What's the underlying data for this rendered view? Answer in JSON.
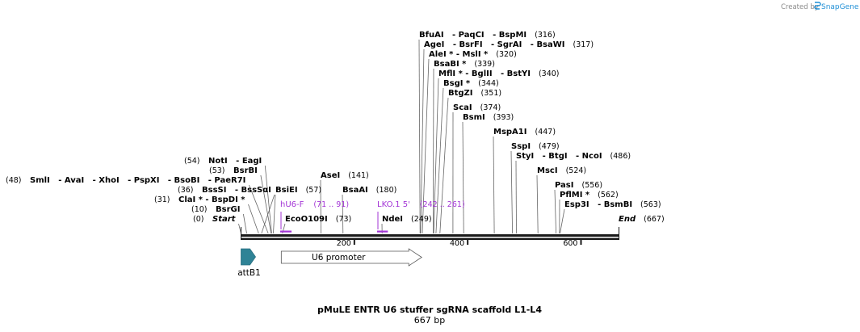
{
  "branding": {
    "created_by": "Created by",
    "app_name": "SnapGene"
  },
  "plasmid": {
    "name": "pMuLE ENTR U6 stuffer sgRNA scaffold L1-L4",
    "length_label": "667 bp",
    "length": 667
  },
  "ruler": {
    "start": 0,
    "end": 667,
    "ticks": [
      {
        "value": 200,
        "label": "200"
      },
      {
        "value": 400,
        "label": "400"
      },
      {
        "value": 600,
        "label": "600"
      }
    ]
  },
  "sites": [
    {
      "pos": 316,
      "name": "BfuAI   - PaqCI   - BspMI",
      "num": "(316)"
    },
    {
      "pos": 317,
      "name": "AgeI   - BsrFI   - SgrAI   - BsaWI",
      "num": "(317)"
    },
    {
      "pos": 320,
      "name": "AleI * - MslI *",
      "num": "(320)"
    },
    {
      "pos": 339,
      "name": "BsaBI *",
      "num": "(339)"
    },
    {
      "pos": 340,
      "name": "MflI * - BglII   - BstYI",
      "num": "(340)"
    },
    {
      "pos": 344,
      "name": "BsgI *",
      "num": "(344)"
    },
    {
      "pos": 351,
      "name": "BtgZI",
      "num": "(351)"
    },
    {
      "pos": 374,
      "name": "ScaI",
      "num": "(374)"
    },
    {
      "pos": 393,
      "name": "BsmI",
      "num": "(393)"
    },
    {
      "pos": 447,
      "name": "MspA1I",
      "num": "(447)"
    },
    {
      "pos": 479,
      "name": "SspI",
      "num": "(479)"
    },
    {
      "pos": 486,
      "name": "StyI   - BtgI   - NcoI",
      "num": "(486)"
    },
    {
      "pos": 524,
      "name": "MscI",
      "num": "(524)"
    },
    {
      "pos": 556,
      "name": "PasI",
      "num": "(556)"
    },
    {
      "pos": 562,
      "name": "PflMI *",
      "num": "(562)"
    },
    {
      "pos": 563,
      "name": "Esp3I   - BsmBI",
      "num": "(563)"
    },
    {
      "pos": 667,
      "name": "End",
      "num": "(667)",
      "italic": true
    },
    {
      "pos": 141,
      "name": "AseI",
      "num": "(141)"
    },
    {
      "pos": 180,
      "name": "BsaAI",
      "num": "(180)"
    },
    {
      "pos": 57,
      "name": "BsiEI",
      "num": "(57)"
    },
    {
      "pos": 73,
      "name": "EcoO109I",
      "num": "(73)"
    },
    {
      "pos": 249,
      "name": "NdeI",
      "num": "(249)"
    },
    {
      "pos": 54,
      "name": "NotI   - EagI",
      "num": "(54)"
    },
    {
      "pos": 53,
      "name": "BsrBI",
      "num": "(53)"
    },
    {
      "pos": 48,
      "name": "SmlI   - AvaI   - XhoI   - PspXI   - BsoBI   - PaeR7I",
      "num": "(48)"
    },
    {
      "pos": 36,
      "name": "BssSI   - BssSαI",
      "num": "(36)"
    },
    {
      "pos": 31,
      "name": "ClaI * - BspDI *",
      "num": "(31)"
    },
    {
      "pos": 10,
      "name": "BsrGI",
      "num": "(10)"
    },
    {
      "pos": 0,
      "name": "Start",
      "num": "(0)",
      "italic": true
    }
  ],
  "primers": [
    {
      "name": "hU6-F",
      "range": "(71 .. 91)",
      "start": 71,
      "end": 91
    },
    {
      "name": "LKO.1 5'",
      "range": "(242 .. 261)",
      "start": 242,
      "end": 261
    }
  ],
  "features": [
    {
      "name": "attB1",
      "start": 0,
      "end": 25,
      "color": "#2f8396"
    },
    {
      "name": "U6 promoter",
      "start": 71,
      "end": 316,
      "color": "#ffffff"
    }
  ]
}
